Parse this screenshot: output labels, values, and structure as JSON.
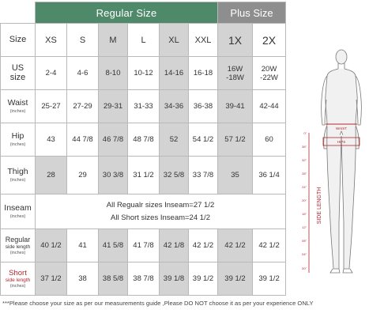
{
  "headers": {
    "regular": "Regular Size",
    "plus": "Plus Size"
  },
  "size_row": {
    "label": "Size",
    "values": [
      "XS",
      "S",
      "M",
      "L",
      "XL",
      "XXL",
      "1X",
      "2X"
    ]
  },
  "us_row": {
    "label": "US size",
    "values": [
      "2-4",
      "4-6",
      "8-10",
      "10-12",
      "14-16",
      "16-18",
      "16W -18W",
      "20W -22W"
    ]
  },
  "waist_row": {
    "label": "Waist",
    "unit": "(inches)",
    "values": [
      "25-27",
      "27-29",
      "29-31",
      "31-33",
      "34-36",
      "36-38",
      "39-41",
      "42-44"
    ]
  },
  "hip_row": {
    "label": "Hip",
    "unit": "(inches)",
    "values": [
      "43",
      "44 7/8",
      "46 7/8",
      "48 7/8",
      "52",
      "54 1/2",
      "57 1/2",
      "60"
    ]
  },
  "thigh_row": {
    "label": "Thigh",
    "unit": "(inches)",
    "values": [
      "28",
      "29",
      "30 3/8",
      "31 1/2",
      "32 5/8",
      "33 7/8",
      "35",
      "36 1/4"
    ]
  },
  "inseam_row": {
    "label": "Inseam",
    "unit": "(inches)",
    "line1": "All Regualr sizes Inseam=27 1/2",
    "line2": "All Short sizes Inseam=24 1/2"
  },
  "regular_side_row": {
    "label": "Regular",
    "sublabel": "side length",
    "unit": "(inches)",
    "values": [
      "40 1/2",
      "41",
      "41 5/8",
      "41 7/8",
      "42 1/8",
      "42 1/2",
      "42 1/2",
      "42 1/2"
    ]
  },
  "short_side_row": {
    "label": "Short",
    "sublabel": "side length",
    "unit": "(inches)",
    "values": [
      "37 1/2",
      "38",
      "38 5/8",
      "38 7/8",
      "39 1/8",
      "39 1/2",
      "39 1/2",
      "39 1/2"
    ]
  },
  "figure": {
    "waist_label": "WAIST",
    "hips_label": "HIPS",
    "side_length_label": "SIDE LENGTH",
    "ruler_ticks": [
      "0\"",
      "36\"",
      "32\"",
      "28\"",
      "24\"",
      "20\"",
      "16\"",
      "12\"",
      "08\"",
      "04\"",
      "00\""
    ]
  },
  "note": "***Please choose your size as per our measurements guide ,Please DO NOT choose it as per your experience ONLY",
  "colors": {
    "regular_header": "#4e8a6a",
    "plus_header": "#8e8e8e",
    "shaded_cell": "#d3d3d3",
    "accent_red": "#b3262e"
  }
}
